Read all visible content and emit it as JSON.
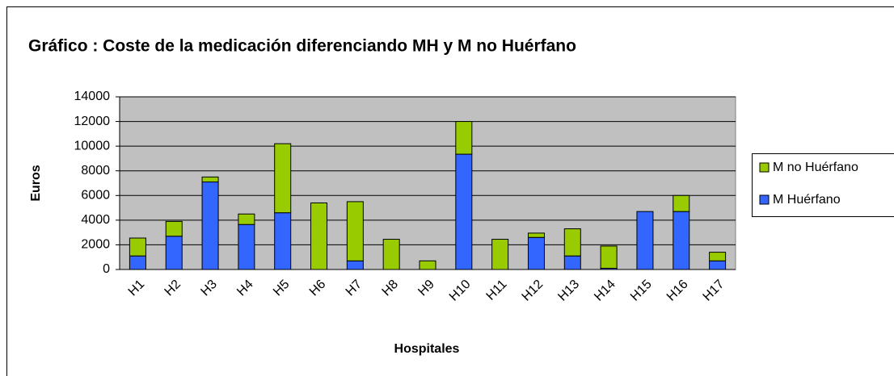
{
  "chart_data": {
    "type": "stacked_bar",
    "title": "Gráfico : Coste de la medicación diferenciando MH y M no Huérfano",
    "x_label": "Hospitales",
    "y_label": "Euros",
    "categories": [
      "H1",
      "H2",
      "H3",
      "H4",
      "H5",
      "H6",
      "H7",
      "H8",
      "H9",
      "H10",
      "H11",
      "H12",
      "H13",
      "H14",
      "H15",
      "H16",
      "H17"
    ],
    "series": [
      {
        "name": "M Huérfano",
        "color": "#3366ff",
        "values": [
          1100,
          2700,
          7100,
          3650,
          4600,
          0,
          700,
          0,
          0,
          9350,
          0,
          2600,
          1100,
          100,
          4700,
          4700,
          700
        ]
      },
      {
        "name": "M no Huérfano",
        "color": "#99cc00",
        "values": [
          1450,
          1200,
          400,
          850,
          5600,
          5400,
          4800,
          2450,
          700,
          2650,
          2450,
          350,
          2200,
          1800,
          0,
          1300,
          700
        ]
      }
    ],
    "ylim": [
      0,
      14000
    ],
    "yticks": [
      0,
      2000,
      4000,
      6000,
      8000,
      10000,
      12000,
      14000
    ],
    "grid": true
  }
}
